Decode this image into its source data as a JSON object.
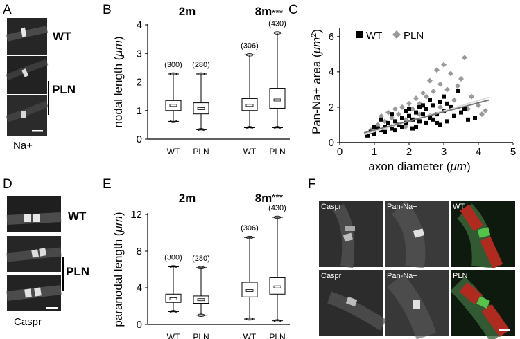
{
  "panels": {
    "A": {
      "letter": "A",
      "stain": "Na+",
      "genotypes": [
        "WT",
        "PLN"
      ]
    },
    "B": {
      "letter": "B",
      "timepoints": [
        "2m",
        "8m"
      ],
      "significance": "***"
    },
    "C": {
      "letter": "C",
      "legend": [
        "WT",
        "PLN"
      ]
    },
    "D": {
      "letter": "D",
      "stain": "Caspr",
      "genotypes": [
        "WT",
        "PLN"
      ]
    },
    "E": {
      "letter": "E",
      "timepoints": [
        "2m",
        "8m"
      ],
      "significance": "***"
    },
    "F": {
      "letter": "F",
      "row_labels": [
        [
          "Caspr",
          "Pan-Na+",
          "WT"
        ],
        [
          "Caspr",
          "Pan-Na+",
          "PLN"
        ]
      ]
    }
  },
  "chart_data": [
    {
      "id": "B",
      "type": "box",
      "ylabel": "nodal length (μm)",
      "ylabel_text": "nodal length (",
      "ylabel_unit": "μm",
      "ylabel_close": ")",
      "ylim": [
        0,
        4
      ],
      "yticks": [
        0,
        1,
        2,
        3,
        4
      ],
      "groups": [
        "2m",
        "8m"
      ],
      "boxes": [
        {
          "group": "2m",
          "label": "WT",
          "n": "(300)",
          "min": 0.62,
          "q1": 1.0,
          "median": 1.18,
          "q3": 1.35,
          "max": 2.28
        },
        {
          "group": "2m",
          "label": "PLN",
          "n": "(280)",
          "min": 0.33,
          "q1": 0.88,
          "median": 1.07,
          "q3": 1.27,
          "max": 2.28
        },
        {
          "group": "8m",
          "label": "WT",
          "n": "(306)",
          "min": 0.4,
          "q1": 1.0,
          "median": 1.18,
          "q3": 1.42,
          "max": 2.95
        },
        {
          "group": "8m",
          "label": "PLN",
          "n": "(430)",
          "min": 0.4,
          "q1": 1.08,
          "median": 1.37,
          "q3": 1.78,
          "max": 3.72
        }
      ]
    },
    {
      "id": "C",
      "type": "scatter",
      "xlabel": "axon diameter (μm)",
      "xlabel_text": "axon diameter (",
      "xlabel_unit": "μm",
      "xlabel_close": ")",
      "ylabel": "Pan-Na+ area (μm2)",
      "ylabel_text": "Pan-Na+ area (",
      "ylabel_unit": "μm",
      "ylabel_sup": "2",
      "ylabel_close": ")",
      "xlim": [
        0,
        5
      ],
      "ylim": [
        0,
        6.5
      ],
      "xticks": [
        0,
        1,
        2,
        3,
        4,
        5
      ],
      "yticks": [
        0,
        2,
        4,
        6
      ],
      "series": [
        {
          "name": "WT",
          "marker": "square",
          "color": "#000000",
          "fit": [
            [
              0.7,
              0.45
            ],
            [
              4.3,
              2.55
            ]
          ],
          "points": [
            [
              0.8,
              0.4
            ],
            [
              0.9,
              0.6
            ],
            [
              1.0,
              0.5
            ],
            [
              1.1,
              0.8
            ],
            [
              1.2,
              0.7
            ],
            [
              1.3,
              0.9
            ],
            [
              1.4,
              1.1
            ],
            [
              1.5,
              0.8
            ],
            [
              1.6,
              1.2
            ],
            [
              1.7,
              1.0
            ],
            [
              1.8,
              1.4
            ],
            [
              1.9,
              1.1
            ],
            [
              2.0,
              1.5
            ],
            [
              2.1,
              1.3
            ],
            [
              2.2,
              1.7
            ],
            [
              2.3,
              1.2
            ],
            [
              2.4,
              1.6
            ],
            [
              2.5,
              1.9
            ],
            [
              2.6,
              1.4
            ],
            [
              2.7,
              2.1
            ],
            [
              2.8,
              1.6
            ],
            [
              2.9,
              2.3
            ],
            [
              3.0,
              1.8
            ],
            [
              3.1,
              1.2
            ],
            [
              3.2,
              2.0
            ],
            [
              3.3,
              1.5
            ],
            [
              3.5,
              1.7
            ],
            [
              3.7,
              1.3
            ],
            [
              3.9,
              1.4
            ],
            [
              1.2,
              1.3
            ],
            [
              1.5,
              1.6
            ],
            [
              1.8,
              0.9
            ],
            [
              2.0,
              1.9
            ],
            [
              2.2,
              0.9
            ],
            [
              2.4,
              2.1
            ],
            [
              2.6,
              2.4
            ],
            [
              2.8,
              1.1
            ],
            [
              3.0,
              2.6
            ],
            [
              3.4,
              2.9
            ],
            [
              1.0,
              0.9
            ],
            [
              1.3,
              0.6
            ],
            [
              1.6,
              0.7
            ],
            [
              1.9,
              1.8
            ],
            [
              2.1,
              0.8
            ],
            [
              2.3,
              2.0
            ],
            [
              2.5,
              1.1
            ],
            [
              2.7,
              1.3
            ],
            [
              2.9,
              1.0
            ],
            [
              3.1,
              2.2
            ],
            [
              3.6,
              1.9
            ]
          ]
        },
        {
          "name": "PLN",
          "marker": "diamond",
          "color": "#999999",
          "fit": [
            [
              0.7,
              0.55
            ],
            [
              4.3,
              2.4
            ]
          ],
          "points": [
            [
              0.9,
              0.7
            ],
            [
              1.1,
              1.0
            ],
            [
              1.3,
              1.2
            ],
            [
              1.5,
              1.4
            ],
            [
              1.7,
              1.6
            ],
            [
              1.9,
              1.3
            ],
            [
              2.1,
              1.9
            ],
            [
              2.3,
              2.2
            ],
            [
              2.5,
              2.6
            ],
            [
              2.7,
              2.9
            ],
            [
              2.9,
              3.3
            ],
            [
              3.1,
              3.0
            ],
            [
              3.3,
              2.4
            ],
            [
              3.5,
              3.6
            ],
            [
              3.6,
              4.8
            ],
            [
              3.8,
              2.6
            ],
            [
              4.0,
              2.1
            ],
            [
              4.2,
              1.8
            ],
            [
              2.8,
              4.1
            ],
            [
              2.6,
              3.5
            ],
            [
              2.4,
              2.8
            ],
            [
              2.2,
              2.5
            ],
            [
              2.0,
              2.2
            ],
            [
              1.8,
              2.0
            ],
            [
              1.6,
              1.9
            ],
            [
              1.4,
              1.7
            ],
            [
              1.2,
              1.5
            ],
            [
              3.2,
              3.9
            ],
            [
              3.4,
              3.2
            ],
            [
              3.0,
              4.4
            ],
            [
              2.9,
              2.0
            ],
            [
              2.6,
              1.5
            ],
            [
              2.3,
              1.6
            ],
            [
              1.9,
              0.9
            ],
            [
              1.5,
              0.9
            ],
            [
              3.7,
              1.9
            ],
            [
              4.1,
              1.6
            ]
          ]
        }
      ]
    },
    {
      "id": "E",
      "type": "box",
      "ylabel": "paranodal length (μm)",
      "ylabel_text": "paranodal length (",
      "ylabel_unit": "μm",
      "ylabel_close": ")",
      "ylim": [
        0,
        12
      ],
      "yticks": [
        0,
        4,
        8,
        12
      ],
      "groups": [
        "2m",
        "8m"
      ],
      "boxes": [
        {
          "group": "2m",
          "label": "WT",
          "n": "(300)",
          "min": 1.4,
          "q1": 2.4,
          "median": 2.8,
          "q3": 3.3,
          "max": 6.3
        },
        {
          "group": "2m",
          "label": "PLN",
          "n": "(280)",
          "min": 1.0,
          "q1": 2.3,
          "median": 2.7,
          "q3": 3.1,
          "max": 6.2
        },
        {
          "group": "8m",
          "label": "WT",
          "n": "(306)",
          "min": 0.6,
          "q1": 3.0,
          "median": 3.7,
          "q3": 4.6,
          "max": 9.5
        },
        {
          "group": "8m",
          "label": "PLN",
          "n": "(430)",
          "min": 0.4,
          "q1": 3.3,
          "median": 4.1,
          "q3": 5.1,
          "max": 11.7
        }
      ]
    }
  ]
}
